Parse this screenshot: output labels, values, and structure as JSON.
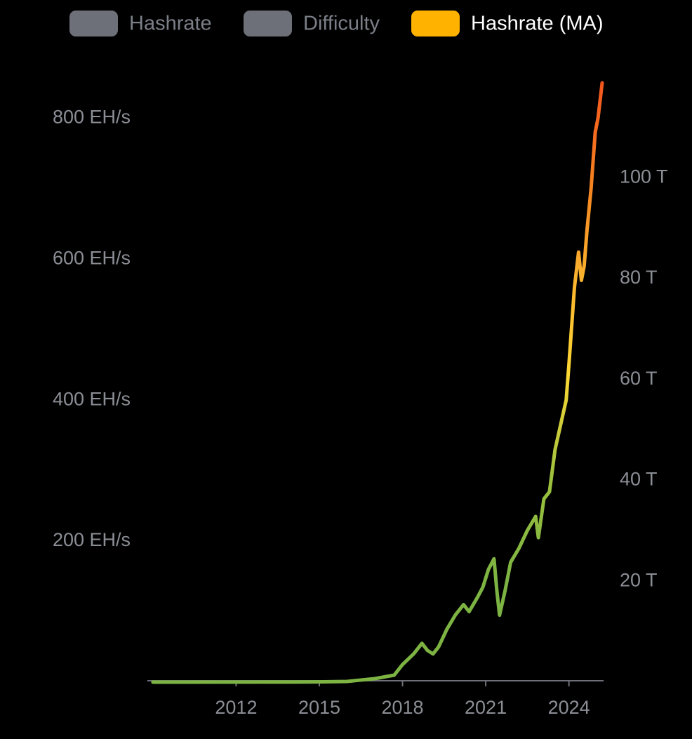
{
  "chart_data": {
    "type": "line",
    "x": [
      2009.0,
      2014.0,
      2015.0,
      2016.0,
      2017.0,
      2017.7,
      2018.0,
      2018.4,
      2018.7,
      2018.9,
      2019.1,
      2019.3,
      2019.6,
      2019.9,
      2020.2,
      2020.4,
      2020.7,
      2020.9,
      2021.1,
      2021.3,
      2021.4,
      2021.5,
      2021.7,
      2021.9,
      2022.2,
      2022.5,
      2022.8,
      2022.9,
      2023.1,
      2023.3,
      2023.5,
      2023.7,
      2023.9,
      2024.0,
      2024.2,
      2024.35,
      2024.45,
      2024.55,
      2024.65,
      2024.8,
      2024.95,
      2025.05,
      2025.2
    ],
    "series": [
      {
        "name": "Hashrate",
        "color": "#6e7079",
        "hidden": true
      },
      {
        "name": "Difficulty",
        "color": "#6e7079",
        "hidden": true,
        "axis": "y2"
      },
      {
        "name": "Hashrate (MA)",
        "color": "#ffb300",
        "hidden": false,
        "values": [
          0,
          0.1,
          0.4,
          1,
          5,
          10,
          25,
          40,
          55,
          45,
          40,
          50,
          75,
          95,
          110,
          100,
          120,
          135,
          160,
          175,
          130,
          95,
          130,
          170,
          190,
          215,
          235,
          205,
          260,
          270,
          330,
          365,
          400,
          450,
          560,
          610,
          570,
          590,
          640,
          700,
          780,
          800,
          850
        ],
        "gradient": [
          "#7cb342",
          "#7cb342",
          "#9cc13d",
          "#fdd835",
          "#fbb12d",
          "#f57c1f",
          "#f4511e"
        ]
      }
    ],
    "xlim": [
      2008.8,
      2025.25
    ],
    "xticks": [
      2012,
      2015,
      2018,
      2021,
      2024
    ],
    "ylim": [
      0,
      870
    ],
    "yticks": [
      {
        "value": 200,
        "label": "200 EH/s"
      },
      {
        "value": 400,
        "label": "400 EH/s"
      },
      {
        "value": 600,
        "label": "600 EH/s"
      },
      {
        "value": 800,
        "label": "800 EH/s"
      }
    ],
    "y2lim": [
      0,
      121.6
    ],
    "y2ticks": [
      {
        "value": 20,
        "label": "20 T"
      },
      {
        "value": 40,
        "label": "40 T"
      },
      {
        "value": 60,
        "label": "60 T"
      },
      {
        "value": 80,
        "label": "80 T"
      },
      {
        "value": 100,
        "label": "100 T"
      }
    ],
    "grid": false
  }
}
